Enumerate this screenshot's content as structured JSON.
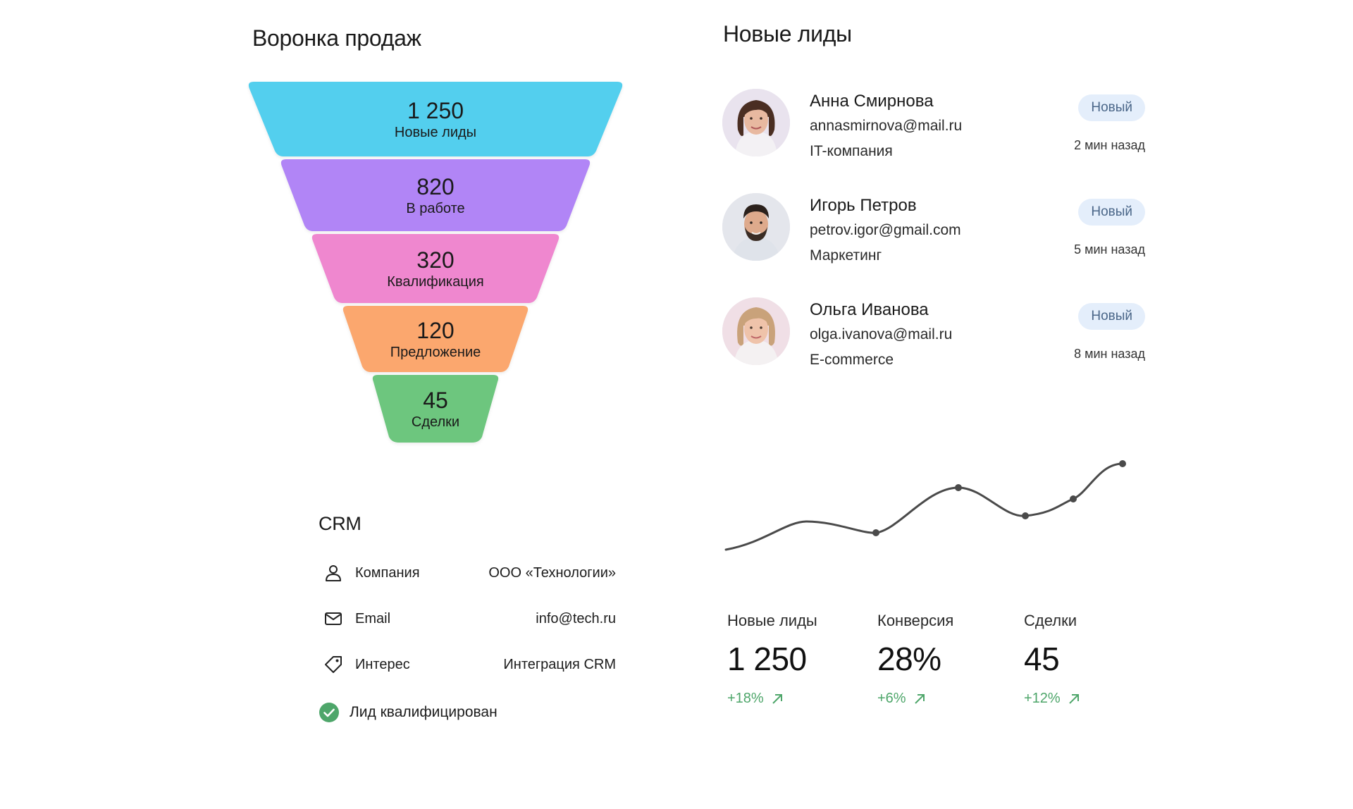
{
  "funnel": {
    "title": "Воронка продаж",
    "stages": [
      {
        "value": "1 250",
        "label": "Новые лиды",
        "color": "#53cfee"
      },
      {
        "value": "820",
        "label": "В работе",
        "color": "#b185f6"
      },
      {
        "value": "320",
        "label": "Квалификация",
        "color": "#ef87cf"
      },
      {
        "value": "120",
        "label": "Предложение",
        "color": "#fba76e"
      },
      {
        "value": "45",
        "label": "Сделки",
        "color": "#6dc67e"
      }
    ]
  },
  "leads": {
    "title": "Новые лиды",
    "items": [
      {
        "name": "Анна Смирнова",
        "email": "annasmirnova@mail.ru",
        "company": "IT-компания",
        "status": "Новый",
        "time": "2 мин назад",
        "avatar_icon": "woman-dark-hair-avatar"
      },
      {
        "name": "Игорь Петров",
        "email": "petrov.igor@gmail.com",
        "company": "Маркетинг",
        "status": "Новый",
        "time": "5 мин назад",
        "avatar_icon": "man-beard-avatar"
      },
      {
        "name": "Ольга Иванова",
        "email": "olga.ivanova@mail.ru",
        "company": "E-commerce",
        "status": "Новый",
        "time": "8 мин назад",
        "avatar_icon": "woman-blonde-avatar"
      }
    ]
  },
  "crm": {
    "title": "CRM",
    "rows": [
      {
        "icon": "user-icon",
        "key": "Компания",
        "value": "ООО «Технологии»"
      },
      {
        "icon": "mail-icon",
        "key": "Email",
        "value": "info@tech.ru"
      },
      {
        "icon": "tag-icon",
        "key": "Интерес",
        "value": "Интеграция CRM"
      }
    ],
    "status": {
      "icon": "check-circle-icon",
      "text": "Лид квалифицирован",
      "color": "#4ea66a"
    }
  },
  "kpis": [
    {
      "label": "Новые лиды",
      "value": "1 250",
      "change": "+18%"
    },
    {
      "label": "Конверсия",
      "value": "28%",
      "change": "+6%"
    },
    {
      "label": "Сделки",
      "value": "45",
      "change": "+12%"
    }
  ],
  "colors": {
    "positive": "#4ea66a",
    "badge_bg": "#e4eefb",
    "badge_text": "#4a6688",
    "line": "#4a4a4a"
  }
}
